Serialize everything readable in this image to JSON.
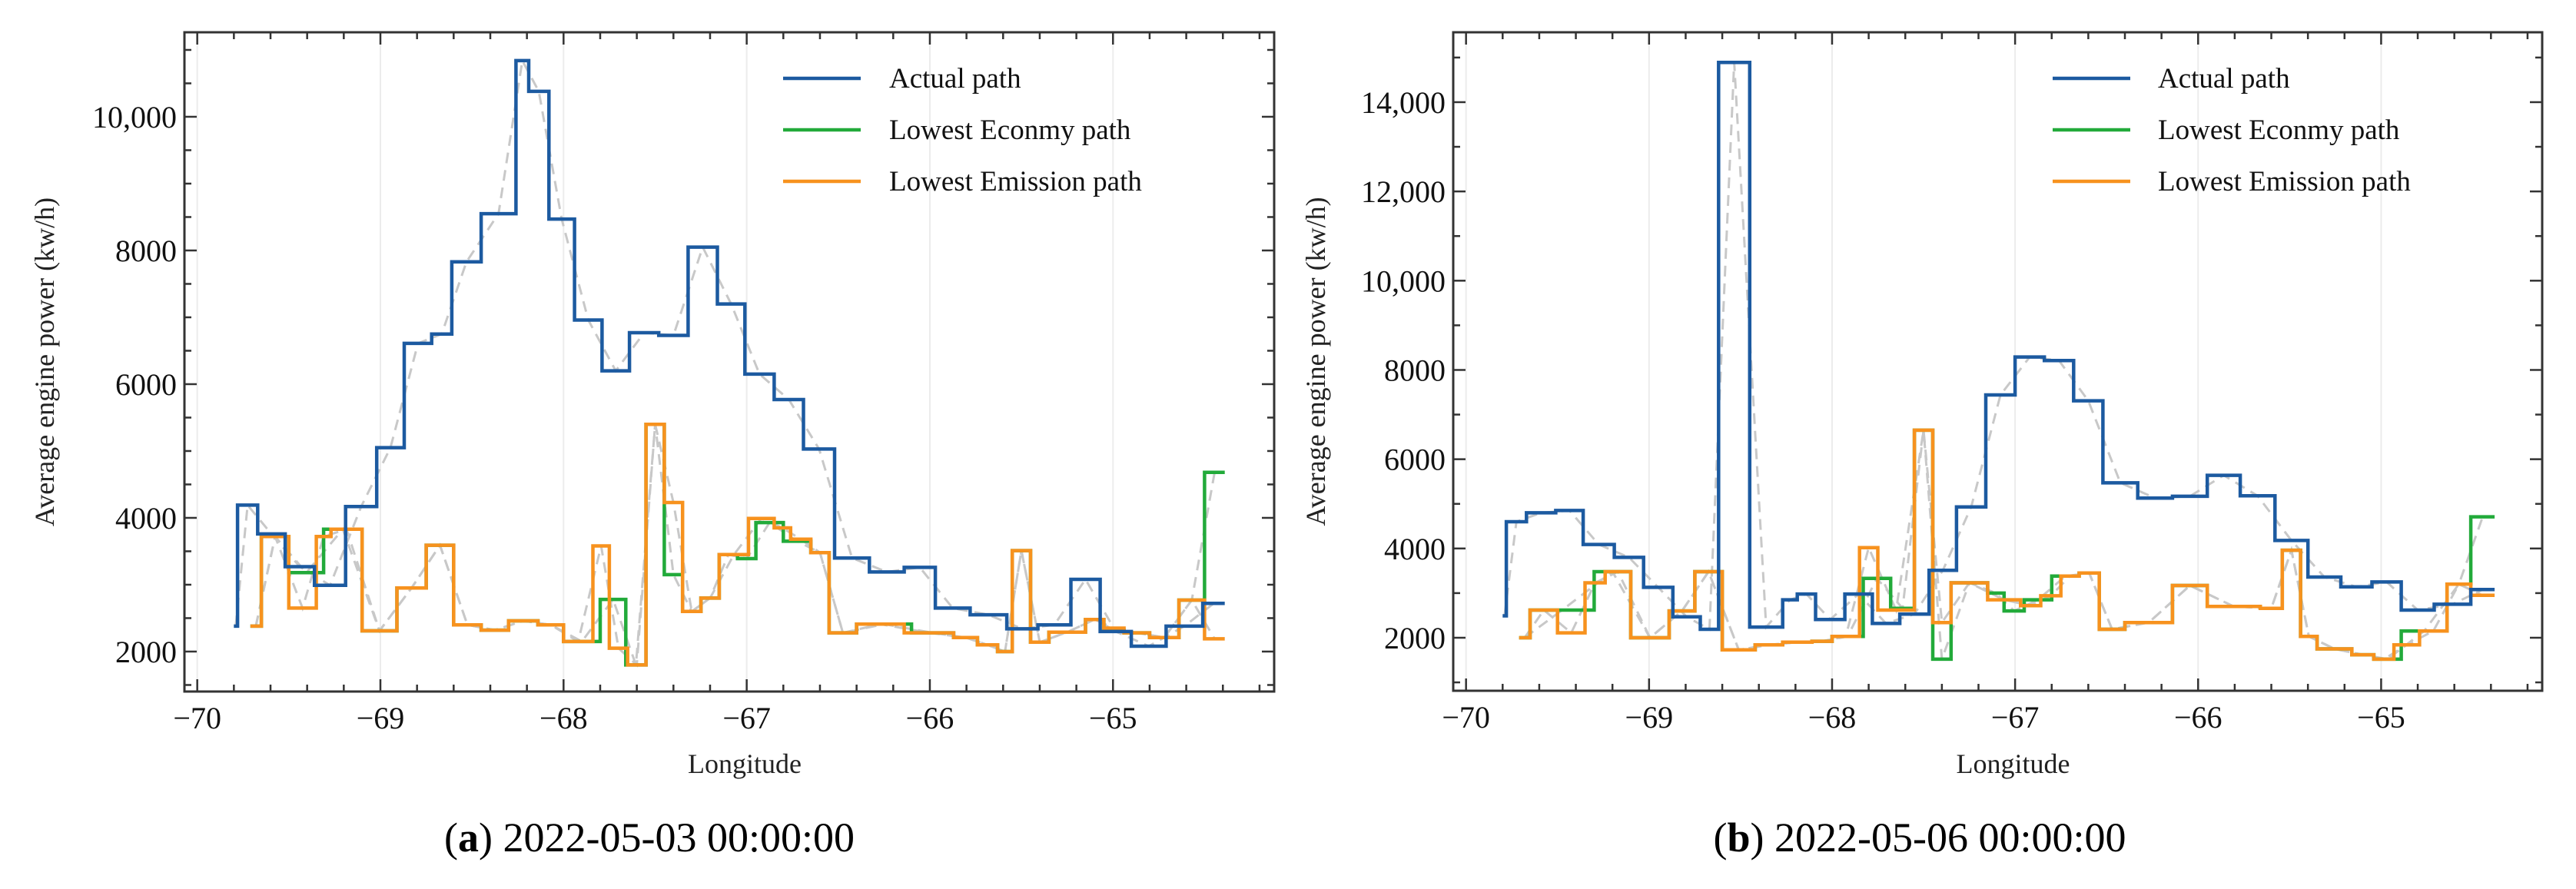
{
  "colors": {
    "actual": "#1c5aa0",
    "economy": "#22aa3a",
    "emission": "#f7921e",
    "smoothed": "#c8c8c8",
    "grid": "#ececec",
    "axis": "#333333"
  },
  "chart_data": [
    {
      "type": "line",
      "step": true,
      "caption_label": "a",
      "caption_text": "2022-05-03 00:00:00",
      "xlabel": "Longitude",
      "ylabel": "Average engine power  (kw/h)",
      "xlim": [
        -70.07,
        -64.12
      ],
      "ylim": [
        1402,
        11264
      ],
      "xticks": [
        -70,
        -69,
        -68,
        -67,
        -66,
        -65
      ],
      "xtick_labels": [
        "−70",
        "−69",
        "−68",
        "−67",
        "−66",
        "−65"
      ],
      "xminor_step": 0.2,
      "yticks": [
        2000,
        4000,
        6000,
        8000,
        10000
      ],
      "ytick_labels": [
        "2000",
        "4000",
        "6000",
        "8000",
        "10,000"
      ],
      "yminor_step": 500,
      "grid": "vertical-major",
      "legend_position": "top-right",
      "legend": [
        "Actual path",
        "Lowest Econmy path",
        "Lowest Emission path"
      ],
      "series": [
        {
          "name": "Actual path",
          "key": "actual",
          "end": -64.39,
          "steps": [
            [
              -69.8,
              2380
            ],
            [
              -69.78,
              4190
            ],
            [
              -69.67,
              3760
            ],
            [
              -69.52,
              3270
            ],
            [
              -69.36,
              2990
            ],
            [
              -69.19,
              4170
            ],
            [
              -69.02,
              5050
            ],
            [
              -68.87,
              6610
            ],
            [
              -68.72,
              6750
            ],
            [
              -68.61,
              7830
            ],
            [
              -68.45,
              8550
            ],
            [
              -68.26,
              10840
            ],
            [
              -68.19,
              10380
            ],
            [
              -68.08,
              8470
            ],
            [
              -67.94,
              6960
            ],
            [
              -67.79,
              6200
            ],
            [
              -67.64,
              6770
            ],
            [
              -67.48,
              6730
            ],
            [
              -67.32,
              8050
            ],
            [
              -67.16,
              7200
            ],
            [
              -67.01,
              6150
            ],
            [
              -66.85,
              5770
            ],
            [
              -66.69,
              5030
            ],
            [
              -66.52,
              3400
            ],
            [
              -66.33,
              3190
            ],
            [
              -66.14,
              3260
            ],
            [
              -65.97,
              2650
            ],
            [
              -65.78,
              2550
            ],
            [
              -65.58,
              2340
            ],
            [
              -65.41,
              2400
            ],
            [
              -65.23,
              3080
            ],
            [
              -65.07,
              2300
            ],
            [
              -64.9,
              2080
            ],
            [
              -64.71,
              2380
            ],
            [
              -64.51,
              2720
            ]
          ]
        },
        {
          "name": "Lowest Econmy path",
          "key": "economy",
          "end": -64.39,
          "steps": [
            [
              -69.71,
              2380
            ],
            [
              -69.65,
              3720
            ],
            [
              -69.5,
              3180
            ],
            [
              -69.31,
              3830
            ],
            [
              -69.1,
              2310
            ],
            [
              -68.91,
              2950
            ],
            [
              -68.75,
              3590
            ],
            [
              -68.6,
              2400
            ],
            [
              -68.45,
              2320
            ],
            [
              -68.3,
              2460
            ],
            [
              -68.14,
              2400
            ],
            [
              -68.0,
              2150
            ],
            [
              -67.8,
              2780
            ],
            [
              -67.66,
              1800
            ],
            [
              -67.55,
              5400
            ],
            [
              -67.45,
              3150
            ],
            [
              -67.35,
              2600
            ],
            [
              -67.25,
              2800
            ],
            [
              -67.15,
              3450
            ],
            [
              -67.05,
              3390
            ],
            [
              -66.95,
              3930
            ],
            [
              -66.8,
              3650
            ],
            [
              -66.65,
              3480
            ],
            [
              -66.55,
              2280
            ],
            [
              -66.4,
              2410
            ],
            [
              -66.1,
              2280
            ],
            [
              -65.87,
              2210
            ],
            [
              -65.74,
              2100
            ],
            [
              -65.63,
              2000
            ],
            [
              -65.55,
              3510
            ],
            [
              -65.45,
              2140
            ],
            [
              -65.35,
              2290
            ],
            [
              -65.15,
              2480
            ],
            [
              -65.05,
              2320
            ],
            [
              -64.94,
              2280
            ],
            [
              -64.8,
              2210
            ],
            [
              -64.64,
              2770
            ],
            [
              -64.5,
              4680
            ]
          ]
        },
        {
          "name": "Lowest Emission path",
          "key": "emission",
          "end": -64.39,
          "steps": [
            [
              -69.71,
              2380
            ],
            [
              -69.65,
              3720
            ],
            [
              -69.5,
              2650
            ],
            [
              -69.35,
              3720
            ],
            [
              -69.27,
              3830
            ],
            [
              -69.1,
              2310
            ],
            [
              -68.91,
              2950
            ],
            [
              -68.75,
              3590
            ],
            [
              -68.6,
              2400
            ],
            [
              -68.45,
              2320
            ],
            [
              -68.3,
              2460
            ],
            [
              -68.14,
              2400
            ],
            [
              -68.0,
              2150
            ],
            [
              -67.84,
              3580
            ],
            [
              -67.75,
              2050
            ],
            [
              -67.65,
              1800
            ],
            [
              -67.55,
              5400
            ],
            [
              -67.45,
              4230
            ],
            [
              -67.35,
              2600
            ],
            [
              -67.25,
              2800
            ],
            [
              -67.15,
              3450
            ],
            [
              -66.99,
              3990
            ],
            [
              -66.85,
              3850
            ],
            [
              -66.76,
              3680
            ],
            [
              -66.65,
              3480
            ],
            [
              -66.55,
              2280
            ],
            [
              -66.4,
              2410
            ],
            [
              -66.14,
              2280
            ],
            [
              -65.87,
              2210
            ],
            [
              -65.74,
              2100
            ],
            [
              -65.63,
              2000
            ],
            [
              -65.55,
              3510
            ],
            [
              -65.45,
              2140
            ],
            [
              -65.35,
              2290
            ],
            [
              -65.15,
              2480
            ],
            [
              -65.05,
              2350
            ],
            [
              -64.94,
              2280
            ],
            [
              -64.8,
              2210
            ],
            [
              -64.64,
              2770
            ],
            [
              -64.5,
              2190
            ]
          ]
        }
      ]
    },
    {
      "type": "line",
      "step": true,
      "caption_label": "b",
      "caption_text": "2022-05-06 00:00:00",
      "xlabel": "Longitude",
      "ylabel": "Average engine power  (kw/h)",
      "xlim": [
        -70.07,
        -64.12
      ],
      "ylim": [
        812,
        15566
      ],
      "xticks": [
        -70,
        -69,
        -68,
        -67,
        -66,
        -65
      ],
      "xtick_labels": [
        "−70",
        "−69",
        "−68",
        "−67",
        "−66",
        "−65"
      ],
      "xminor_step": 0.2,
      "yticks": [
        2000,
        4000,
        6000,
        8000,
        10000,
        12000,
        14000
      ],
      "ytick_labels": [
        "2000",
        "4000",
        "6000",
        "8000",
        "10,000",
        "12,000",
        "14,000"
      ],
      "yminor_step": 1000,
      "grid": "vertical-major",
      "legend_position": "top-right",
      "legend": [
        "Actual path",
        "Lowest Econmy path",
        "Lowest Emission path"
      ],
      "series": [
        {
          "name": "Actual path",
          "key": "actual",
          "end": -64.38,
          "steps": [
            [
              -69.8,
              2490
            ],
            [
              -69.78,
              4600
            ],
            [
              -69.67,
              4800
            ],
            [
              -69.51,
              4850
            ],
            [
              -69.36,
              4090
            ],
            [
              -69.19,
              3800
            ],
            [
              -69.03,
              3130
            ],
            [
              -68.87,
              2470
            ],
            [
              -68.72,
              2190
            ],
            [
              -68.62,
              14890
            ],
            [
              -68.45,
              2240
            ],
            [
              -68.27,
              2850
            ],
            [
              -68.19,
              2980
            ],
            [
              -68.09,
              2410
            ],
            [
              -67.93,
              2980
            ],
            [
              -67.78,
              2320
            ],
            [
              -67.63,
              2530
            ],
            [
              -67.47,
              3510
            ],
            [
              -67.32,
              4930
            ],
            [
              -67.16,
              7440
            ],
            [
              -67.0,
              8290
            ],
            [
              -66.84,
              8210
            ],
            [
              -66.68,
              7310
            ],
            [
              -66.52,
              5470
            ],
            [
              -66.33,
              5130
            ],
            [
              -66.14,
              5170
            ],
            [
              -65.95,
              5640
            ],
            [
              -65.77,
              5180
            ],
            [
              -65.58,
              4180
            ],
            [
              -65.4,
              3360
            ],
            [
              -65.22,
              3140
            ],
            [
              -65.05,
              3250
            ],
            [
              -64.89,
              2620
            ],
            [
              -64.71,
              2750
            ],
            [
              -64.51,
              3080
            ]
          ]
        },
        {
          "name": "Lowest Econmy path",
          "key": "economy",
          "end": -64.38,
          "steps": [
            [
              -69.71,
              2000
            ],
            [
              -69.65,
              2620
            ],
            [
              -69.3,
              3480
            ],
            [
              -69.1,
              2000
            ],
            [
              -68.89,
              2600
            ],
            [
              -68.75,
              3480
            ],
            [
              -68.6,
              1730
            ],
            [
              -68.42,
              1840
            ],
            [
              -68.27,
              1900
            ],
            [
              -68.11,
              1920
            ],
            [
              -68.0,
              2030
            ],
            [
              -67.83,
              3330
            ],
            [
              -67.68,
              2660
            ],
            [
              -67.55,
              6650
            ],
            [
              -67.45,
              1520
            ],
            [
              -67.35,
              3230
            ],
            [
              -67.15,
              3000
            ],
            [
              -67.06,
              2600
            ],
            [
              -66.95,
              2850
            ],
            [
              -66.8,
              3380
            ],
            [
              -66.65,
              3450
            ],
            [
              -66.54,
              2190
            ],
            [
              -66.4,
              2340
            ],
            [
              -66.14,
              3170
            ],
            [
              -65.95,
              2700
            ],
            [
              -65.66,
              2660
            ],
            [
              -65.54,
              3960
            ],
            [
              -65.44,
              2030
            ],
            [
              -65.35,
              1750
            ],
            [
              -65.16,
              1620
            ],
            [
              -65.04,
              1520
            ],
            [
              -64.89,
              2150
            ],
            [
              -64.64,
              3200
            ],
            [
              -64.51,
              4710
            ]
          ]
        },
        {
          "name": "Lowest Emission path",
          "key": "emission",
          "end": -64.38,
          "steps": [
            [
              -69.71,
              2000
            ],
            [
              -69.65,
              2620
            ],
            [
              -69.5,
              2110
            ],
            [
              -69.35,
              3230
            ],
            [
              -69.24,
              3480
            ],
            [
              -69.1,
              2000
            ],
            [
              -68.89,
              2600
            ],
            [
              -68.75,
              3480
            ],
            [
              -68.6,
              1730
            ],
            [
              -68.42,
              1840
            ],
            [
              -68.27,
              1900
            ],
            [
              -68.11,
              1920
            ],
            [
              -68.0,
              2030
            ],
            [
              -67.85,
              4020
            ],
            [
              -67.75,
              2620
            ],
            [
              -67.55,
              6650
            ],
            [
              -67.45,
              2340
            ],
            [
              -67.35,
              3230
            ],
            [
              -67.15,
              2850
            ],
            [
              -66.97,
              2720
            ],
            [
              -66.86,
              2940
            ],
            [
              -66.75,
              3380
            ],
            [
              -66.65,
              3450
            ],
            [
              -66.54,
              2190
            ],
            [
              -66.4,
              2340
            ],
            [
              -66.14,
              3170
            ],
            [
              -65.95,
              2700
            ],
            [
              -65.66,
              2660
            ],
            [
              -65.54,
              3960
            ],
            [
              -65.44,
              2030
            ],
            [
              -65.35,
              1750
            ],
            [
              -65.16,
              1620
            ],
            [
              -65.04,
              1520
            ],
            [
              -64.93,
              1840
            ],
            [
              -64.79,
              2150
            ],
            [
              -64.64,
              3200
            ],
            [
              -64.51,
              2950
            ]
          ]
        }
      ]
    }
  ]
}
